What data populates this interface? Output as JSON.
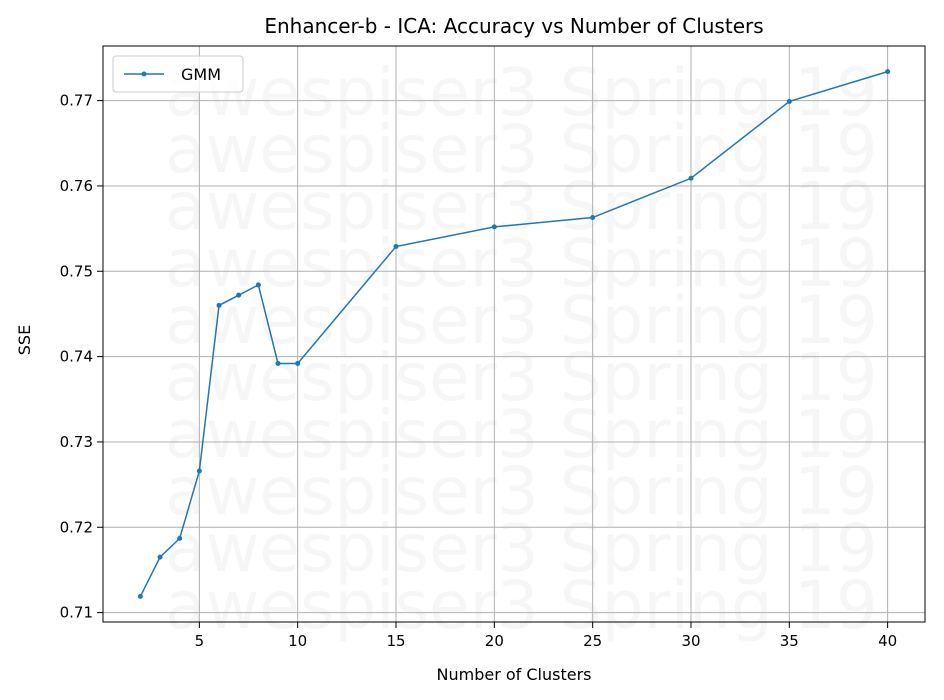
{
  "chart_data": {
    "type": "line",
    "title": "Enhancer-b - ICA: Accuracy vs Number of Clusters",
    "xlabel": "Number of Clusters",
    "ylabel": "SSE",
    "x": [
      2,
      3,
      4,
      5,
      6,
      7,
      8,
      9,
      10,
      15,
      20,
      25,
      30,
      35,
      40
    ],
    "series": [
      {
        "name": "GMM",
        "color": "#1f77b4",
        "values": [
          0.7119,
          0.7165,
          0.7187,
          0.7266,
          0.746,
          0.7472,
          0.7484,
          0.7392,
          0.7392,
          0.7529,
          0.7552,
          0.7563,
          0.7609,
          0.7699,
          0.7734
        ]
      }
    ],
    "xlim": [
      0.1,
      41.9
    ],
    "ylim": [
      0.7089,
      0.7764
    ],
    "xticks": [
      5,
      10,
      15,
      20,
      25,
      30,
      35,
      40
    ],
    "yticks": [
      0.71,
      0.72,
      0.73,
      0.74,
      0.75,
      0.76,
      0.77
    ],
    "grid": true,
    "legend_position": "upper-left",
    "watermark": "awespiser3 Spring 19"
  }
}
